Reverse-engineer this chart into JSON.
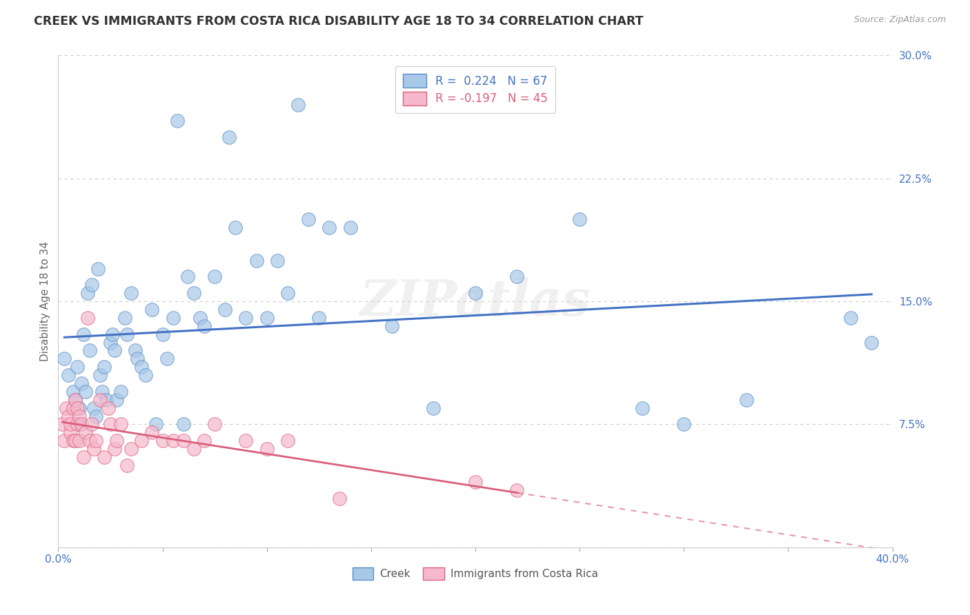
{
  "title": "CREEK VS IMMIGRANTS FROM COSTA RICA DISABILITY AGE 18 TO 34 CORRELATION CHART",
  "source": "Source: ZipAtlas.com",
  "ylabel": "Disability Age 18 to 34",
  "xlim": [
    0.0,
    0.4
  ],
  "ylim": [
    0.0,
    0.3
  ],
  "xticks": [
    0.0,
    0.05,
    0.1,
    0.15,
    0.2,
    0.25,
    0.3,
    0.35,
    0.4
  ],
  "xticklabels_visible": [
    "0.0%",
    "",
    "",
    "",
    "",
    "",
    "",
    "",
    "40.0%"
  ],
  "yticks": [
    0.0,
    0.075,
    0.15,
    0.225,
    0.3
  ],
  "yticklabels": [
    "",
    "7.5%",
    "15.0%",
    "22.5%",
    "30.0%"
  ],
  "grid_color": "#cccccc",
  "background_color": "#ffffff",
  "creek_color": "#a8c8e8",
  "creek_edge_color": "#5b8ec4",
  "creek_line_color": "#4472c4",
  "immigrant_color": "#f5b8cc",
  "immigrant_edge_color": "#e0607a",
  "immigrant_line_color": "#d95f7a",
  "creek_R": 0.224,
  "creek_N": 67,
  "immigrant_R": -0.197,
  "immigrant_N": 45,
  "watermark": "ZIPatlas",
  "creek_scatter_x": [
    0.003,
    0.005,
    0.007,
    0.008,
    0.009,
    0.01,
    0.01,
    0.011,
    0.012,
    0.013,
    0.014,
    0.015,
    0.016,
    0.017,
    0.018,
    0.019,
    0.02,
    0.021,
    0.022,
    0.023,
    0.025,
    0.026,
    0.027,
    0.028,
    0.03,
    0.032,
    0.033,
    0.035,
    0.037,
    0.038,
    0.04,
    0.042,
    0.045,
    0.047,
    0.05,
    0.052,
    0.055,
    0.057,
    0.06,
    0.062,
    0.065,
    0.068,
    0.07,
    0.075,
    0.08,
    0.082,
    0.085,
    0.09,
    0.095,
    0.1,
    0.105,
    0.11,
    0.115,
    0.12,
    0.125,
    0.13,
    0.14,
    0.16,
    0.18,
    0.2,
    0.22,
    0.25,
    0.28,
    0.3,
    0.33,
    0.38,
    0.39
  ],
  "creek_scatter_y": [
    0.115,
    0.105,
    0.095,
    0.09,
    0.11,
    0.085,
    0.075,
    0.1,
    0.13,
    0.095,
    0.155,
    0.12,
    0.16,
    0.085,
    0.08,
    0.17,
    0.105,
    0.095,
    0.11,
    0.09,
    0.125,
    0.13,
    0.12,
    0.09,
    0.095,
    0.14,
    0.13,
    0.155,
    0.12,
    0.115,
    0.11,
    0.105,
    0.145,
    0.075,
    0.13,
    0.115,
    0.14,
    0.26,
    0.075,
    0.165,
    0.155,
    0.14,
    0.135,
    0.165,
    0.145,
    0.25,
    0.195,
    0.14,
    0.175,
    0.14,
    0.175,
    0.155,
    0.27,
    0.2,
    0.14,
    0.195,
    0.195,
    0.135,
    0.085,
    0.155,
    0.165,
    0.2,
    0.085,
    0.075,
    0.09,
    0.14,
    0.125
  ],
  "immigrant_scatter_x": [
    0.002,
    0.003,
    0.004,
    0.005,
    0.006,
    0.006,
    0.007,
    0.007,
    0.008,
    0.008,
    0.009,
    0.009,
    0.01,
    0.01,
    0.011,
    0.012,
    0.013,
    0.014,
    0.015,
    0.016,
    0.017,
    0.018,
    0.02,
    0.022,
    0.024,
    0.025,
    0.027,
    0.028,
    0.03,
    0.033,
    0.035,
    0.04,
    0.045,
    0.05,
    0.055,
    0.06,
    0.065,
    0.07,
    0.075,
    0.09,
    0.1,
    0.11,
    0.135,
    0.2,
    0.22
  ],
  "immigrant_scatter_y": [
    0.075,
    0.065,
    0.085,
    0.08,
    0.07,
    0.075,
    0.065,
    0.085,
    0.065,
    0.09,
    0.075,
    0.085,
    0.08,
    0.065,
    0.075,
    0.055,
    0.07,
    0.14,
    0.065,
    0.075,
    0.06,
    0.065,
    0.09,
    0.055,
    0.085,
    0.075,
    0.06,
    0.065,
    0.075,
    0.05,
    0.06,
    0.065,
    0.07,
    0.065,
    0.065,
    0.065,
    0.06,
    0.065,
    0.075,
    0.065,
    0.06,
    0.065,
    0.03,
    0.04,
    0.035
  ]
}
